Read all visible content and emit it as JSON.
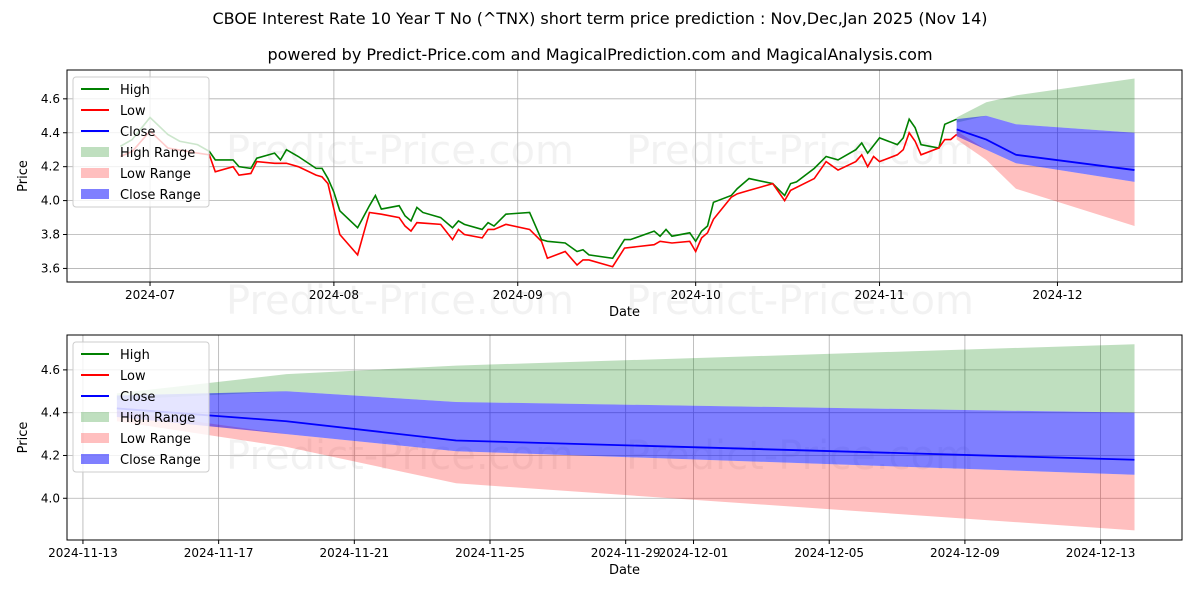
{
  "title": "CBOE Interest Rate 10 Year T No (^TNX) short term price prediction : Nov,Dec,Jan 2025 (Nov 14)",
  "subtitle": "powered by Predict-Price.com and MagicalPrediction.com and MagicalAnalysis.com",
  "watermark": "Predict-Price.com",
  "colors": {
    "high": "#008000",
    "low": "#ff0000",
    "close": "#0000ff",
    "high_range": "#7fbf7f",
    "low_range": "#ff7f7f",
    "close_range": "#0000ff"
  },
  "legend": [
    "High",
    "Low",
    "Close",
    "High Range",
    "Low Range",
    "Close Range"
  ],
  "chart_data": [
    {
      "type": "line",
      "panel": "history",
      "xlabel": "Date",
      "ylabel": "Price",
      "xlim": [
        "2024-06-17",
        "2024-12-22"
      ],
      "ylim": [
        3.52,
        4.77
      ],
      "xticks": [
        "2024-07",
        "2024-08",
        "2024-09",
        "2024-10",
        "2024-11",
        "2024-12"
      ],
      "yticks": [
        "3.6",
        "3.8",
        "4.0",
        "4.2",
        "4.4",
        "4.6"
      ],
      "grid": true,
      "legend_position": "top-left",
      "high": [
        [
          "2024-06-26",
          4.32
        ],
        [
          "2024-06-28",
          4.36
        ],
        [
          "2024-07-01",
          4.49
        ],
        [
          "2024-07-04",
          4.39
        ],
        [
          "2024-07-06",
          4.35
        ],
        [
          "2024-07-09",
          4.33
        ],
        [
          "2024-07-11",
          4.29
        ],
        [
          "2024-07-12",
          4.24
        ],
        [
          "2024-07-15",
          4.24
        ],
        [
          "2024-07-16",
          4.2
        ],
        [
          "2024-07-18",
          4.19
        ],
        [
          "2024-07-19",
          4.25
        ],
        [
          "2024-07-22",
          4.28
        ],
        [
          "2024-07-23",
          4.24
        ],
        [
          "2024-07-24",
          4.3
        ],
        [
          "2024-07-26",
          4.26
        ],
        [
          "2024-07-29",
          4.19
        ],
        [
          "2024-07-30",
          4.19
        ],
        [
          "2024-07-31",
          4.13
        ],
        [
          "2024-08-01",
          4.05
        ],
        [
          "2024-08-02",
          3.94
        ],
        [
          "2024-08-05",
          3.84
        ],
        [
          "2024-08-07",
          3.97
        ],
        [
          "2024-08-08",
          4.03
        ],
        [
          "2024-08-09",
          3.95
        ],
        [
          "2024-08-12",
          3.97
        ],
        [
          "2024-08-13",
          3.91
        ],
        [
          "2024-08-14",
          3.88
        ],
        [
          "2024-08-15",
          3.96
        ],
        [
          "2024-08-16",
          3.93
        ],
        [
          "2024-08-19",
          3.9
        ],
        [
          "2024-08-21",
          3.84
        ],
        [
          "2024-08-22",
          3.88
        ],
        [
          "2024-08-23",
          3.86
        ],
        [
          "2024-08-26",
          3.83
        ],
        [
          "2024-08-27",
          3.87
        ],
        [
          "2024-08-28",
          3.85
        ],
        [
          "2024-08-30",
          3.92
        ],
        [
          "2024-09-03",
          3.93
        ],
        [
          "2024-09-05",
          3.77
        ],
        [
          "2024-09-06",
          3.76
        ],
        [
          "2024-09-09",
          3.75
        ],
        [
          "2024-09-11",
          3.7
        ],
        [
          "2024-09-12",
          3.71
        ],
        [
          "2024-09-13",
          3.68
        ],
        [
          "2024-09-17",
          3.66
        ],
        [
          "2024-09-19",
          3.77
        ],
        [
          "2024-09-20",
          3.77
        ],
        [
          "2024-09-24",
          3.82
        ],
        [
          "2024-09-25",
          3.79
        ],
        [
          "2024-09-26",
          3.83
        ],
        [
          "2024-09-27",
          3.79
        ],
        [
          "2024-09-30",
          3.81
        ],
        [
          "2024-10-01",
          3.76
        ],
        [
          "2024-10-02",
          3.82
        ],
        [
          "2024-10-03",
          3.85
        ],
        [
          "2024-10-04",
          3.99
        ],
        [
          "2024-10-07",
          4.03
        ],
        [
          "2024-10-08",
          4.07
        ],
        [
          "2024-10-10",
          4.13
        ],
        [
          "2024-10-14",
          4.1
        ],
        [
          "2024-10-16",
          4.03
        ],
        [
          "2024-10-17",
          4.1
        ],
        [
          "2024-10-18",
          4.11
        ],
        [
          "2024-10-21",
          4.19
        ],
        [
          "2024-10-23",
          4.26
        ],
        [
          "2024-10-25",
          4.24
        ],
        [
          "2024-10-28",
          4.3
        ],
        [
          "2024-10-29",
          4.34
        ],
        [
          "2024-10-30",
          4.28
        ],
        [
          "2024-11-01",
          4.37
        ],
        [
          "2024-11-04",
          4.33
        ],
        [
          "2024-11-05",
          4.37
        ],
        [
          "2024-11-06",
          4.48
        ],
        [
          "2024-11-07",
          4.43
        ],
        [
          "2024-11-08",
          4.33
        ],
        [
          "2024-11-11",
          4.31
        ],
        [
          "2024-11-12",
          4.45
        ],
        [
          "2024-11-14",
          4.48
        ]
      ],
      "low": [
        [
          "2024-06-26",
          4.26
        ],
        [
          "2024-06-28",
          4.29
        ],
        [
          "2024-07-01",
          4.41
        ],
        [
          "2024-07-04",
          4.31
        ],
        [
          "2024-07-09",
          4.28
        ],
        [
          "2024-07-11",
          4.27
        ],
        [
          "2024-07-12",
          4.17
        ],
        [
          "2024-07-15",
          4.2
        ],
        [
          "2024-07-16",
          4.15
        ],
        [
          "2024-07-18",
          4.16
        ],
        [
          "2024-07-19",
          4.23
        ],
        [
          "2024-07-22",
          4.22
        ],
        [
          "2024-07-23",
          4.22
        ],
        [
          "2024-07-24",
          4.22
        ],
        [
          "2024-07-26",
          4.2
        ],
        [
          "2024-07-29",
          4.15
        ],
        [
          "2024-07-30",
          4.14
        ],
        [
          "2024-07-31",
          4.1
        ],
        [
          "2024-08-02",
          3.8
        ],
        [
          "2024-08-05",
          3.68
        ],
        [
          "2024-08-07",
          3.93
        ],
        [
          "2024-08-09",
          3.92
        ],
        [
          "2024-08-12",
          3.9
        ],
        [
          "2024-08-13",
          3.85
        ],
        [
          "2024-08-14",
          3.82
        ],
        [
          "2024-08-15",
          3.87
        ],
        [
          "2024-08-19",
          3.86
        ],
        [
          "2024-08-21",
          3.77
        ],
        [
          "2024-08-22",
          3.83
        ],
        [
          "2024-08-23",
          3.8
        ],
        [
          "2024-08-26",
          3.78
        ],
        [
          "2024-08-27",
          3.83
        ],
        [
          "2024-08-28",
          3.83
        ],
        [
          "2024-08-30",
          3.86
        ],
        [
          "2024-09-03",
          3.83
        ],
        [
          "2024-09-05",
          3.76
        ],
        [
          "2024-09-06",
          3.66
        ],
        [
          "2024-09-09",
          3.7
        ],
        [
          "2024-09-11",
          3.62
        ],
        [
          "2024-09-12",
          3.65
        ],
        [
          "2024-09-13",
          3.65
        ],
        [
          "2024-09-17",
          3.61
        ],
        [
          "2024-09-19",
          3.72
        ],
        [
          "2024-09-24",
          3.74
        ],
        [
          "2024-09-25",
          3.76
        ],
        [
          "2024-09-27",
          3.75
        ],
        [
          "2024-09-30",
          3.76
        ],
        [
          "2024-10-01",
          3.7
        ],
        [
          "2024-10-02",
          3.78
        ],
        [
          "2024-10-03",
          3.81
        ],
        [
          "2024-10-04",
          3.89
        ],
        [
          "2024-10-07",
          4.02
        ],
        [
          "2024-10-08",
          4.04
        ],
        [
          "2024-10-10",
          4.06
        ],
        [
          "2024-10-14",
          4.1
        ],
        [
          "2024-10-16",
          4.0
        ],
        [
          "2024-10-17",
          4.06
        ],
        [
          "2024-10-21",
          4.13
        ],
        [
          "2024-10-23",
          4.23
        ],
        [
          "2024-10-25",
          4.18
        ],
        [
          "2024-10-28",
          4.23
        ],
        [
          "2024-10-29",
          4.27
        ],
        [
          "2024-10-30",
          4.2
        ],
        [
          "2024-10-31",
          4.26
        ],
        [
          "2024-11-01",
          4.23
        ],
        [
          "2024-11-04",
          4.27
        ],
        [
          "2024-11-05",
          4.3
        ],
        [
          "2024-11-06",
          4.4
        ],
        [
          "2024-11-07",
          4.35
        ],
        [
          "2024-11-08",
          4.27
        ],
        [
          "2024-11-11",
          4.31
        ],
        [
          "2024-11-12",
          4.36
        ],
        [
          "2024-11-13",
          4.36
        ],
        [
          "2024-11-14",
          4.39
        ]
      ]
    },
    {
      "type": "area",
      "panel": "forecast",
      "xlabel": "Date",
      "ylabel": "Price",
      "xlim": [
        "2024-11-12.53",
        "2024-12-15.4"
      ],
      "ylim": [
        3.805,
        4.763
      ],
      "xticks": [
        "2024-11-13",
        "2024-11-17",
        "2024-11-21",
        "2024-11-25",
        "2024-11-29",
        "2024-12-01",
        "2024-12-05",
        "2024-12-09",
        "2024-12-13"
      ],
      "yticks": [
        "4.0",
        "4.2",
        "4.4",
        "4.6"
      ],
      "grid": true,
      "legend_position": "top-left",
      "dates": [
        "2024-11-14",
        "2024-11-19",
        "2024-11-24",
        "2024-12-14"
      ],
      "close": [
        4.42,
        4.36,
        4.27,
        4.18
      ],
      "high_range": {
        "upper": [
          4.49,
          4.58,
          4.62,
          4.72
        ],
        "lower": [
          4.46,
          4.5,
          4.45,
          4.4
        ]
      },
      "close_range": {
        "upper": [
          4.48,
          4.5,
          4.45,
          4.4
        ],
        "lower": [
          4.38,
          4.3,
          4.22,
          4.11
        ]
      },
      "low_range": {
        "upper": [
          4.41,
          4.3,
          4.22,
          4.11
        ],
        "lower": [
          4.36,
          4.24,
          4.07,
          3.85
        ]
      }
    }
  ]
}
